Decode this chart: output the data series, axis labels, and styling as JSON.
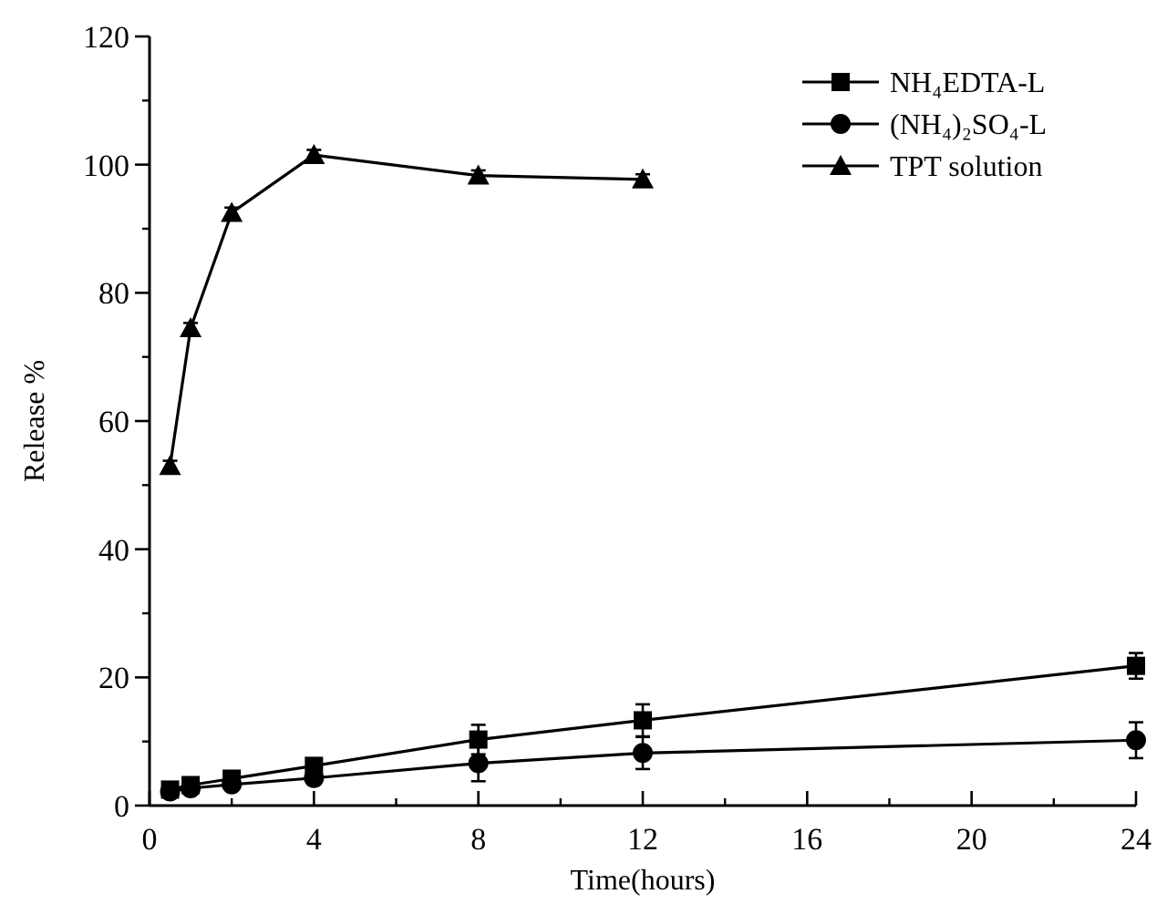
{
  "chart_data": {
    "type": "line",
    "xlabel": "Time(hours)",
    "ylabel": "Release %",
    "xlim": [
      0,
      24
    ],
    "xticks": [
      0,
      4,
      8,
      12,
      16,
      20,
      24
    ],
    "ylim": [
      0,
      120
    ],
    "yticks": [
      0,
      20,
      40,
      60,
      80,
      100,
      120
    ],
    "legend": "top right",
    "grid": false,
    "series": [
      {
        "name": "NH₄EDTA-L",
        "color": "#000000",
        "marker": "square",
        "x": [
          0.5,
          1,
          2,
          4,
          8,
          12,
          24
        ],
        "values": [
          2.5,
          3.2,
          4.2,
          6.2,
          10.3,
          13.3,
          21.8
        ],
        "errors": [
          0.8,
          0.8,
          0.8,
          1,
          2.3,
          2.5,
          2
        ]
      },
      {
        "name": "(NH₄)₂SO₄-L",
        "color": "#000000",
        "marker": "circle",
        "x": [
          0.5,
          1,
          2,
          4,
          8,
          12,
          24
        ],
        "values": [
          2.2,
          2.7,
          3.3,
          4.3,
          6.6,
          8.2,
          10.2
        ],
        "errors": [
          0.8,
          0.8,
          0.8,
          1,
          2.8,
          2.5,
          2.8
        ]
      },
      {
        "name": "TPT solution",
        "color": "#000000",
        "marker": "triangle",
        "x": [
          0.5,
          1,
          2,
          4,
          8,
          12
        ],
        "values": [
          53,
          74.5,
          92.5,
          101.5,
          98.3,
          97.7
        ],
        "errors": [
          0.8,
          0.8,
          0.8,
          0.8,
          0.8,
          0.8
        ]
      }
    ]
  }
}
